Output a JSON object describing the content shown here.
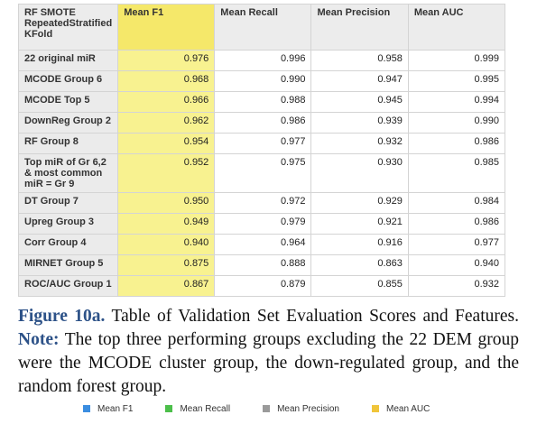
{
  "table": {
    "header": [
      "RF SMOTE RepeatedStratified KFold",
      "Mean F1",
      "Mean Recall",
      "Mean Precision",
      "Mean AUC"
    ],
    "rows": [
      [
        "22 original miR",
        "0.976",
        "0.996",
        "0.958",
        "0.999"
      ],
      [
        "MCODE Group 6",
        "0.968",
        "0.990",
        "0.947",
        "0.995"
      ],
      [
        "MCODE Top 5",
        "0.966",
        "0.988",
        "0.945",
        "0.994"
      ],
      [
        "DownReg Group 2",
        "0.962",
        "0.986",
        "0.939",
        "0.990"
      ],
      [
        "RF Group 8",
        "0.954",
        "0.977",
        "0.932",
        "0.986"
      ],
      [
        "Top miR of Gr 6,2 & most common miR = Gr 9",
        "0.952",
        "0.975",
        "0.930",
        "0.985"
      ],
      [
        "DT Group 7",
        "0.950",
        "0.972",
        "0.929",
        "0.984"
      ],
      [
        "Upreg Group 3",
        "0.949",
        "0.979",
        "0.921",
        "0.986"
      ],
      [
        "Corr Group 4",
        "0.940",
        "0.964",
        "0.916",
        "0.977"
      ],
      [
        "MIRNET Group 5",
        "0.875",
        "0.888",
        "0.863",
        "0.940"
      ],
      [
        "ROC/AUC Group 1",
        "0.867",
        "0.879",
        "0.855",
        "0.932"
      ]
    ]
  },
  "caption": {
    "label": "Figure 10a.",
    "title": "Table of Validation Set Evaluation Scores and Features.",
    "note_label": "Note:",
    "note": "The top three performing groups excluding the 22 DEM group were the MCODE cluster group, the down-regulated group, and the random forest group."
  },
  "legend": [
    {
      "name": "Mean F1",
      "color": "#3b8de0"
    },
    {
      "name": "Mean Recall",
      "color": "#4cbf4a"
    },
    {
      "name": "Mean Precision",
      "color": "#9a9a9a"
    },
    {
      "name": "Mean AUC",
      "color": "#f0c53a"
    }
  ]
}
